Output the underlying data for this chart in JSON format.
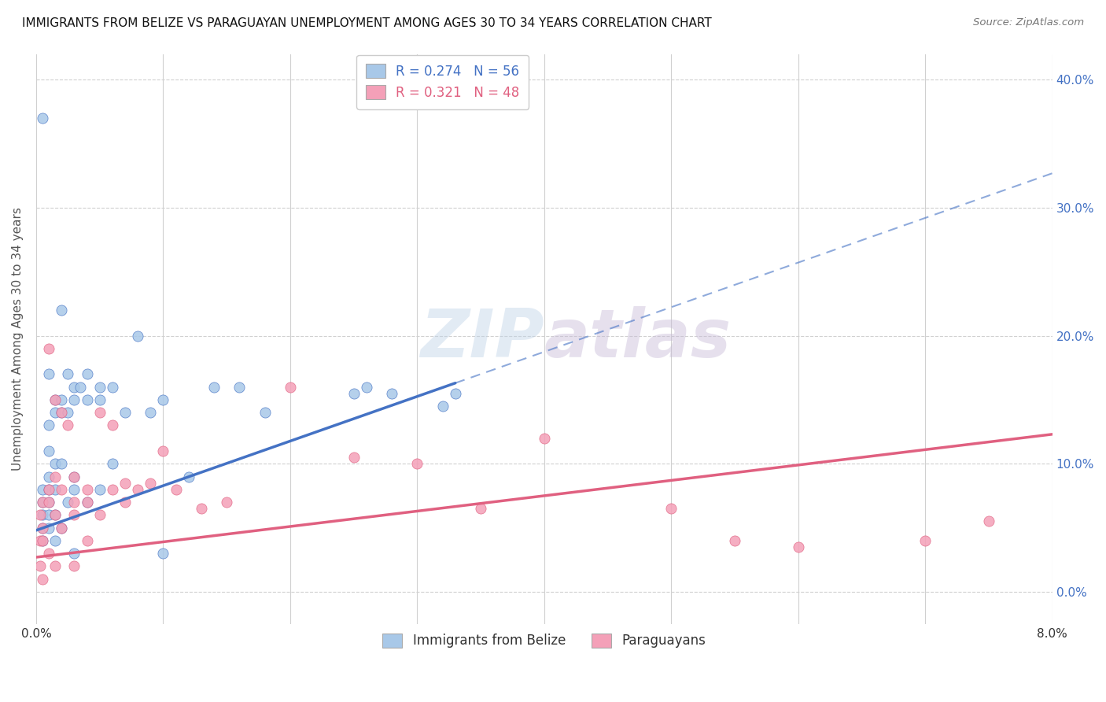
{
  "title": "IMMIGRANTS FROM BELIZE VS PARAGUAYAN UNEMPLOYMENT AMONG AGES 30 TO 34 YEARS CORRELATION CHART",
  "source": "Source: ZipAtlas.com",
  "ylabel": "Unemployment Among Ages 30 to 34 years",
  "belize_R": "0.274",
  "belize_N": "56",
  "paraguay_R": "0.321",
  "paraguay_N": "48",
  "belize_color": "#a8c8e8",
  "paraguay_color": "#f4a0b8",
  "belize_line_color": "#4472c4",
  "paraguay_line_color": "#e06080",
  "legend_label_belize": "Immigrants from Belize",
  "legend_label_paraguay": "Paraguayans",
  "watermark_zip": "ZIP",
  "watermark_atlas": "atlas",
  "xlim": [
    0.0,
    0.08
  ],
  "ylim": [
    -0.025,
    0.42
  ],
  "x_tick_vals": [
    0.0,
    0.01,
    0.02,
    0.03,
    0.04,
    0.05,
    0.06,
    0.07,
    0.08
  ],
  "y_tick_vals": [
    0.0,
    0.1,
    0.2,
    0.3,
    0.4
  ],
  "belize_line_x0": 0.0,
  "belize_line_y0": 0.048,
  "belize_line_x1": 0.033,
  "belize_line_y1": 0.163,
  "paraguay_line_x0": 0.0,
  "paraguay_line_y0": 0.027,
  "paraguay_line_x1": 0.08,
  "paraguay_line_y1": 0.123,
  "belize_x": [
    0.0005,
    0.0005,
    0.0005,
    0.0005,
    0.0005,
    0.0005,
    0.001,
    0.001,
    0.001,
    0.001,
    0.001,
    0.001,
    0.001,
    0.001,
    0.0015,
    0.0015,
    0.0015,
    0.0015,
    0.0015,
    0.0015,
    0.002,
    0.002,
    0.002,
    0.002,
    0.002,
    0.0025,
    0.0025,
    0.0025,
    0.003,
    0.003,
    0.003,
    0.003,
    0.003,
    0.0035,
    0.004,
    0.004,
    0.004,
    0.005,
    0.005,
    0.005,
    0.006,
    0.006,
    0.007,
    0.008,
    0.009,
    0.01,
    0.01,
    0.012,
    0.014,
    0.016,
    0.018,
    0.025,
    0.026,
    0.028,
    0.032,
    0.033
  ],
  "belize_y": [
    0.37,
    0.08,
    0.07,
    0.06,
    0.05,
    0.04,
    0.17,
    0.13,
    0.11,
    0.09,
    0.08,
    0.07,
    0.06,
    0.05,
    0.15,
    0.14,
    0.1,
    0.08,
    0.06,
    0.04,
    0.22,
    0.15,
    0.14,
    0.1,
    0.05,
    0.17,
    0.14,
    0.07,
    0.16,
    0.15,
    0.09,
    0.08,
    0.03,
    0.16,
    0.17,
    0.15,
    0.07,
    0.16,
    0.15,
    0.08,
    0.16,
    0.1,
    0.14,
    0.2,
    0.14,
    0.15,
    0.03,
    0.09,
    0.16,
    0.16,
    0.14,
    0.155,
    0.16,
    0.155,
    0.145,
    0.155
  ],
  "paraguay_x": [
    0.0003,
    0.0003,
    0.0003,
    0.0005,
    0.0005,
    0.0005,
    0.0005,
    0.001,
    0.001,
    0.001,
    0.001,
    0.0015,
    0.0015,
    0.0015,
    0.0015,
    0.002,
    0.002,
    0.002,
    0.0025,
    0.003,
    0.003,
    0.003,
    0.003,
    0.004,
    0.004,
    0.004,
    0.005,
    0.005,
    0.006,
    0.006,
    0.007,
    0.007,
    0.008,
    0.009,
    0.01,
    0.011,
    0.013,
    0.015,
    0.02,
    0.025,
    0.03,
    0.035,
    0.04,
    0.05,
    0.055,
    0.06,
    0.07,
    0.075
  ],
  "paraguay_y": [
    0.06,
    0.04,
    0.02,
    0.07,
    0.05,
    0.04,
    0.01,
    0.19,
    0.08,
    0.07,
    0.03,
    0.15,
    0.09,
    0.06,
    0.02,
    0.14,
    0.08,
    0.05,
    0.13,
    0.09,
    0.07,
    0.06,
    0.02,
    0.08,
    0.07,
    0.04,
    0.14,
    0.06,
    0.13,
    0.08,
    0.085,
    0.07,
    0.08,
    0.085,
    0.11,
    0.08,
    0.065,
    0.07,
    0.16,
    0.105,
    0.1,
    0.065,
    0.12,
    0.065,
    0.04,
    0.035,
    0.04,
    0.055
  ]
}
